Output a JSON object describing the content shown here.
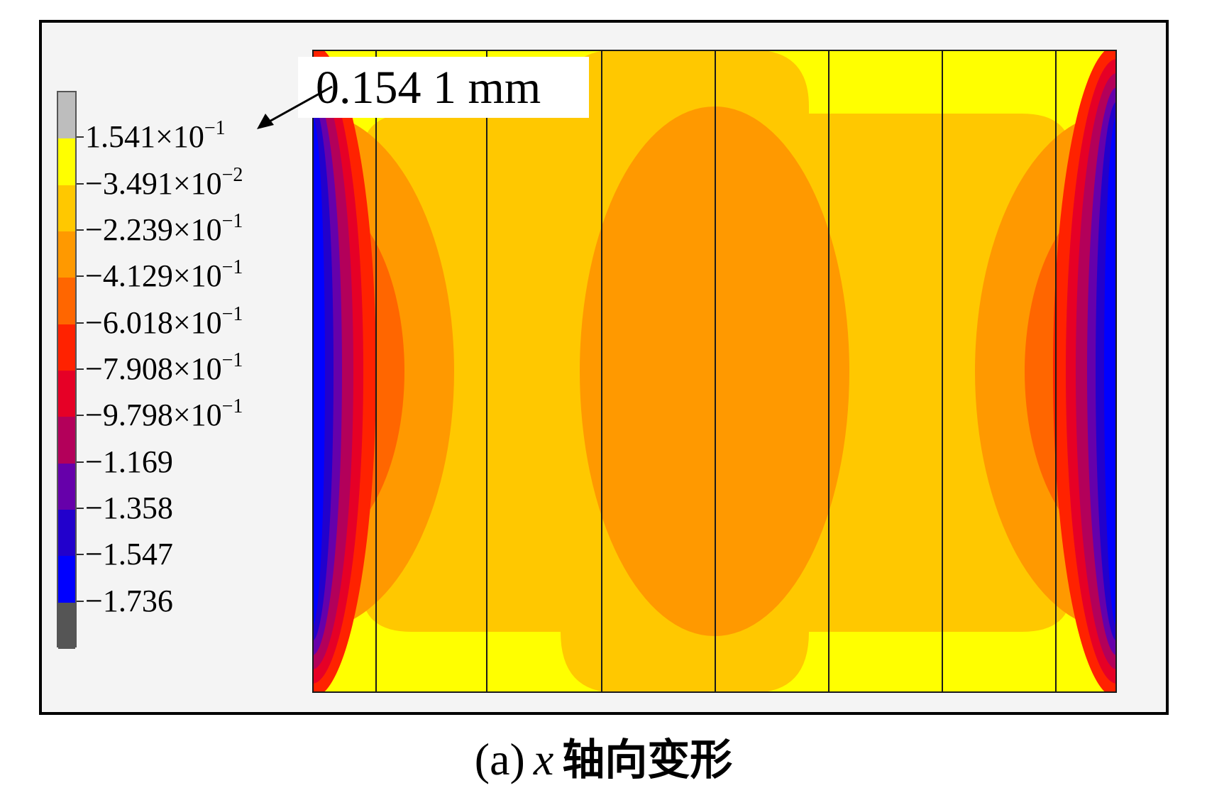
{
  "figure": {
    "caption_prefix": "(a)",
    "caption_axis": "x",
    "caption_rest": "轴向变形"
  },
  "callout": {
    "text": "0.154 1 mm",
    "value_mm": 0.1541
  },
  "legend": {
    "labels": [
      {
        "base": "1.541×10",
        "exp": "−1"
      },
      {
        "base": "−3.491×10",
        "exp": "−2"
      },
      {
        "base": "−2.239×10",
        "exp": "−1"
      },
      {
        "base": "−4.129×10",
        "exp": "−1"
      },
      {
        "base": "−6.018×10",
        "exp": "−1"
      },
      {
        "base": "−7.908×10",
        "exp": "−1"
      },
      {
        "base": "−9.798×10",
        "exp": "−1"
      },
      {
        "base": "−1.169",
        "exp": ""
      },
      {
        "base": "−1.358",
        "exp": ""
      },
      {
        "base": "−1.547",
        "exp": ""
      },
      {
        "base": "−1.736",
        "exp": ""
      }
    ],
    "colors": [
      "#bdbdbd",
      "#ffff00",
      "#ffc800",
      "#ff9900",
      "#ff6600",
      "#ff2200",
      "#e60026",
      "#b3005a",
      "#6600aa",
      "#2200cc",
      "#0000ff",
      "#555555"
    ]
  },
  "contour": {
    "plate_count": 8,
    "colors": {
      "outer": "#ffff00",
      "level1": "#ffc800",
      "level2": "#ff9900",
      "level3": "#ff6600",
      "level4": "#ff2200",
      "level5": "#e60026",
      "level6": "#b3005a",
      "level7": "#6600aa",
      "level8": "#2200cc",
      "level9": "#0000ff",
      "divider": "#1a1a1a"
    }
  }
}
